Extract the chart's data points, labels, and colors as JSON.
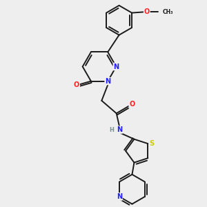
{
  "bg_color": "#eeeeee",
  "bond_color": "#1a1a1a",
  "bond_width": 1.4,
  "atom_colors": {
    "N": "#2020ff",
    "O": "#ff2020",
    "S": "#cccc00",
    "H": "#7a9090",
    "C": "#1a1a1a"
  },
  "font_size": 7.0,
  "dbo": 0.1
}
